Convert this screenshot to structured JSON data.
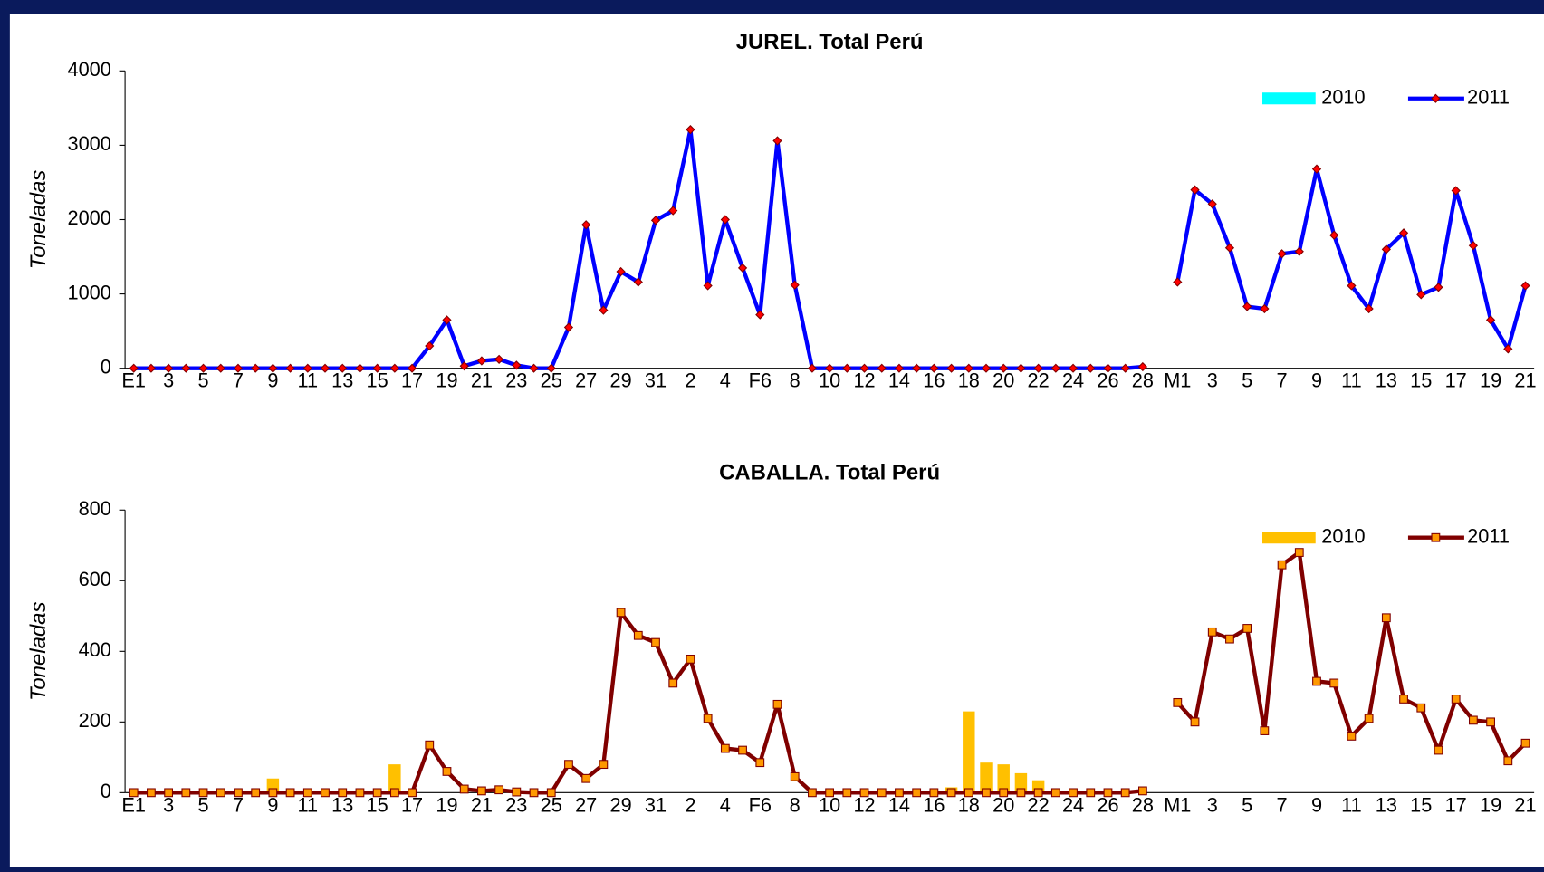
{
  "chart_data": [
    {
      "type": "combo",
      "title": "JUREL. Total Perú",
      "y_label": "Toneladas",
      "categories": [
        "E1",
        null,
        "3",
        null,
        "5",
        null,
        "7",
        null,
        "9",
        null,
        "11",
        null,
        "13",
        null,
        "15",
        null,
        "17",
        null,
        "19",
        null,
        "21",
        null,
        "23",
        null,
        "25",
        null,
        "27",
        null,
        "29",
        null,
        "31",
        null,
        "2",
        null,
        "4",
        null,
        "F6",
        null,
        "8",
        null,
        "10",
        null,
        "12",
        null,
        "14",
        null,
        "16",
        null,
        "18",
        null,
        "20",
        null,
        "22",
        null,
        "24",
        null,
        "26",
        null,
        "28",
        null,
        "M1",
        null,
        "3",
        null,
        "5",
        null,
        "7",
        null,
        "9",
        null,
        "11",
        null,
        "13",
        null,
        "15",
        null,
        "17",
        null,
        "19",
        null,
        "21"
      ],
      "ylim": [
        0,
        4000
      ],
      "yticks": [
        0,
        1000,
        2000,
        3000,
        4000
      ],
      "legend": "top-right",
      "series": [
        {
          "name": "2010",
          "type": "bar",
          "color": "#00ffff",
          "values": [
            0,
            0,
            0,
            0,
            0,
            0,
            0,
            0,
            0,
            0,
            0,
            0,
            0,
            0,
            0,
            0,
            0,
            0,
            0,
            0,
            0,
            0,
            0,
            0,
            0,
            0,
            0,
            0,
            0,
            0,
            0,
            0,
            0,
            0,
            0,
            0,
            0,
            0,
            0,
            0,
            0,
            0,
            0,
            0,
            0,
            0,
            0,
            0,
            0,
            0,
            0,
            0,
            0,
            0,
            0,
            0,
            0,
            0,
            0,
            null,
            0,
            0,
            0,
            0,
            0,
            0,
            0,
            0,
            0,
            0,
            0,
            0,
            0,
            0,
            0,
            0,
            0,
            0,
            0,
            0,
            0
          ]
        },
        {
          "name": "2011",
          "type": "line",
          "color": "#0000ff",
          "marker": "diamond",
          "marker_color": "#ff0000",
          "values": [
            0,
            0,
            0,
            0,
            0,
            0,
            0,
            0,
            0,
            0,
            0,
            0,
            0,
            0,
            0,
            0,
            0,
            300,
            650,
            30,
            100,
            120,
            40,
            0,
            0,
            550,
            1930,
            780,
            1300,
            1160,
            1990,
            2120,
            3210,
            1110,
            2000,
            1350,
            720,
            3060,
            1120,
            0,
            0,
            0,
            0,
            0,
            0,
            0,
            0,
            0,
            0,
            0,
            0,
            0,
            0,
            0,
            0,
            0,
            0,
            0,
            20,
            null,
            1160,
            2400,
            2210,
            1620,
            830,
            800,
            1540,
            1570,
            2680,
            1790,
            1110,
            800,
            1600,
            1820,
            990,
            1090,
            2390,
            1650,
            650,
            260,
            1110
          ]
        }
      ]
    },
    {
      "type": "combo",
      "title": "CABALLA. Total Perú",
      "y_label": "Toneladas",
      "categories": [
        "E1",
        null,
        "3",
        null,
        "5",
        null,
        "7",
        null,
        "9",
        null,
        "11",
        null,
        "13",
        null,
        "15",
        null,
        "17",
        null,
        "19",
        null,
        "21",
        null,
        "23",
        null,
        "25",
        null,
        "27",
        null,
        "29",
        null,
        "31",
        null,
        "2",
        null,
        "4",
        null,
        "F6",
        null,
        "8",
        null,
        "10",
        null,
        "12",
        null,
        "14",
        null,
        "16",
        null,
        "18",
        null,
        "20",
        null,
        "22",
        null,
        "24",
        null,
        "26",
        null,
        "28",
        null,
        "M1",
        null,
        "3",
        null,
        "5",
        null,
        "7",
        null,
        "9",
        null,
        "11",
        null,
        "13",
        null,
        "15",
        null,
        "17",
        null,
        "19",
        null,
        "21"
      ],
      "ylim": [
        0,
        800
      ],
      "yticks": [
        0,
        200,
        400,
        600,
        800
      ],
      "legend": "top-right",
      "series": [
        {
          "name": "2010",
          "type": "bar",
          "color": "#ffc000",
          "values": [
            0,
            0,
            0,
            0,
            0,
            0,
            0,
            0,
            40,
            0,
            0,
            0,
            0,
            0,
            0,
            80,
            0,
            0,
            0,
            0,
            0,
            0,
            0,
            0,
            0,
            0,
            0,
            0,
            0,
            0,
            0,
            0,
            0,
            0,
            0,
            0,
            0,
            0,
            0,
            0,
            0,
            0,
            0,
            0,
            0,
            0,
            0,
            15,
            230,
            85,
            80,
            55,
            35,
            0,
            0,
            0,
            0,
            0,
            0,
            null,
            0,
            0,
            0,
            0,
            0,
            0,
            0,
            0,
            0,
            0,
            0,
            0,
            0,
            0,
            0,
            0,
            0,
            0,
            0,
            0,
            0
          ]
        },
        {
          "name": "2011",
          "type": "line",
          "color": "#800000",
          "marker": "square",
          "marker_color": "#ff9900",
          "values": [
            0,
            0,
            0,
            0,
            0,
            0,
            0,
            0,
            0,
            0,
            0,
            0,
            0,
            0,
            0,
            0,
            0,
            135,
            60,
            10,
            5,
            8,
            2,
            0,
            0,
            80,
            40,
            80,
            510,
            445,
            425,
            310,
            378,
            210,
            125,
            120,
            85,
            250,
            45,
            0,
            0,
            0,
            0,
            0,
            0,
            0,
            0,
            0,
            0,
            0,
            0,
            0,
            0,
            0,
            0,
            0,
            0,
            0,
            5,
            null,
            255,
            200,
            455,
            435,
            465,
            175,
            645,
            680,
            315,
            310,
            160,
            210,
            495,
            265,
            240,
            120,
            265,
            205,
            200,
            90,
            140
          ]
        }
      ]
    }
  ]
}
